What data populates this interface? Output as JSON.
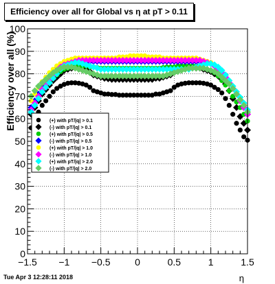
{
  "chart_data": {
    "type": "scatter",
    "title": "Efficiency over all for Global vs   η at pT > 0.11",
    "xlabel": "η",
    "ylabel": "Efficiency over all (%)",
    "xlim": [
      -1.5,
      1.5
    ],
    "ylim": [
      0,
      100
    ],
    "xticks": [
      "−1.5",
      "−1",
      "−0.5",
      "0",
      "0.5",
      "1",
      "1.5"
    ],
    "yticks": [
      "0",
      "10",
      "20",
      "30",
      "40",
      "50",
      "60",
      "70",
      "80",
      "90",
      "100"
    ],
    "grid": true,
    "legend_position": "left",
    "x": [
      -1.45,
      -1.4,
      -1.35,
      -1.3,
      -1.25,
      -1.2,
      -1.15,
      -1.1,
      -1.05,
      -1.0,
      -0.95,
      -0.9,
      -0.85,
      -0.8,
      -0.75,
      -0.7,
      -0.65,
      -0.6,
      -0.55,
      -0.5,
      -0.45,
      -0.4,
      -0.35,
      -0.3,
      -0.25,
      -0.2,
      -0.15,
      -0.1,
      -0.05,
      0.0,
      0.05,
      0.1,
      0.15,
      0.2,
      0.25,
      0.3,
      0.35,
      0.4,
      0.45,
      0.5,
      0.55,
      0.6,
      0.65,
      0.7,
      0.75,
      0.8,
      0.85,
      0.9,
      0.95,
      1.0,
      1.05,
      1.1,
      1.15,
      1.2,
      1.25,
      1.3,
      1.35,
      1.4,
      1.45,
      1.5
    ],
    "series": [
      {
        "name": "(+) with pT/|q| > 0.1",
        "color": "#000000",
        "marker": "circle",
        "values": [
          56,
          60,
          63,
          66,
          68,
          70,
          72,
          73.5,
          74.5,
          75.3,
          75.8,
          76,
          76,
          75.8,
          75.5,
          75,
          74,
          72.5,
          72,
          71.5,
          71,
          71,
          70.8,
          70.8,
          70.5,
          70.5,
          70.5,
          70.5,
          70.5,
          70.5,
          70.5,
          70.5,
          70.5,
          70.5,
          71,
          71,
          71.5,
          72,
          72.5,
          74,
          75,
          75.5,
          75.8,
          76,
          76,
          76,
          76,
          75.8,
          75.5,
          75,
          74,
          73,
          71.5,
          69,
          66,
          62,
          58,
          55,
          52,
          50.5
        ]
      },
      {
        "name": "(-) with pT/|q| > 0.1",
        "color": "#000000",
        "marker": "diamond",
        "values": [
          62,
          65,
          68,
          71,
          73,
          75,
          77,
          78.5,
          80,
          81.5,
          82,
          82.5,
          82.8,
          83,
          82.5,
          82,
          81,
          79.5,
          79,
          78.5,
          78,
          77.8,
          77.5,
          77.5,
          77.5,
          77.5,
          77.5,
          77.5,
          77.5,
          77.5,
          77.5,
          77.5,
          77.5,
          77.5,
          78,
          78,
          78.5,
          79,
          79.5,
          81,
          82,
          82.5,
          83,
          83,
          82.8,
          82.5,
          82.5,
          82,
          81.5,
          81,
          80,
          79,
          77.5,
          75.5,
          72.5,
          69,
          65,
          61,
          58,
          55
        ]
      },
      {
        "name": "(+) with pT/|q| > 0.5",
        "color": "#00cc00",
        "marker": "circle",
        "values": [
          64,
          67,
          70,
          72.5,
          74.5,
          76.5,
          78,
          79.5,
          81,
          82,
          82.5,
          83,
          83.5,
          83.5,
          83.5,
          83.5,
          83,
          83,
          82.8,
          82.5,
          82.5,
          82.5,
          82.5,
          82.5,
          82.5,
          82.5,
          82.5,
          82.5,
          82.5,
          82.5,
          82.5,
          82.5,
          82.5,
          82.5,
          82.5,
          82.5,
          82.8,
          83,
          83,
          83,
          83.5,
          83.5,
          83.5,
          83.5,
          83.5,
          83.5,
          83,
          82.5,
          82,
          81.5,
          80.5,
          79,
          77,
          75,
          72.5,
          70,
          67.5,
          65,
          62,
          59
        ]
      },
      {
        "name": "(-) with pT/|q| > 0.5",
        "color": "#0000ff",
        "marker": "diamond",
        "values": [
          65,
          68,
          71,
          74,
          76.5,
          78.5,
          80.5,
          82.5,
          84,
          85,
          85.5,
          85.5,
          85.5,
          85.5,
          85.5,
          85.5,
          85.5,
          85.5,
          85.5,
          85.5,
          85.5,
          85.5,
          85.5,
          85.5,
          85.5,
          85.5,
          85.5,
          85.5,
          85.5,
          85.5,
          85.5,
          85.5,
          85.5,
          85.5,
          85.5,
          85.5,
          85.5,
          85.5,
          85.5,
          85.5,
          85.5,
          85.5,
          85.5,
          85.5,
          85.5,
          85.5,
          85.5,
          85.5,
          85,
          84.5,
          83.5,
          82,
          80.5,
          78.5,
          76,
          73.5,
          71,
          68,
          65,
          62
        ]
      },
      {
        "name": "(+) with pT/|q| > 1.0",
        "color": "#ffff00",
        "marker": "circle",
        "values": [
          68,
          71,
          74,
          76.5,
          78.5,
          80.5,
          82,
          83.5,
          84.5,
          85.5,
          86,
          86.5,
          87,
          87,
          87,
          87,
          87,
          87,
          87,
          87,
          87,
          87,
          87,
          87,
          87.5,
          87.5,
          87.5,
          88,
          88,
          88,
          88,
          88,
          87.5,
          87.5,
          87.5,
          87.5,
          87,
          87,
          87,
          87,
          87,
          87,
          87,
          87,
          87,
          87,
          86.5,
          86,
          85.5,
          85,
          84,
          82.5,
          81,
          79,
          77,
          74.5,
          72,
          69.5,
          67,
          64
        ]
      },
      {
        "name": "(-) with pT/|q| > 1.0",
        "color": "#ff00ff",
        "marker": "diamond",
        "values": [
          64,
          67,
          70,
          73,
          75.5,
          77.5,
          79.5,
          81.5,
          83,
          84,
          84.5,
          85,
          85.5,
          86,
          86,
          86,
          86,
          86,
          86,
          86,
          86,
          86,
          86,
          86,
          86,
          86,
          86,
          86,
          86,
          86,
          86,
          86,
          86,
          86,
          86,
          86,
          86,
          86,
          86,
          86,
          86,
          86,
          86,
          86,
          86,
          86,
          86,
          85.5,
          85,
          84.5,
          83.5,
          82,
          80.5,
          78.5,
          76,
          73.5,
          71,
          68,
          65,
          62
        ]
      },
      {
        "name": "(+) with pT/|q| > 2.0",
        "color": "#00ffff",
        "marker": "diamond",
        "values": [
          63,
          66,
          69,
          72,
          74,
          76,
          78,
          80,
          82,
          83.5,
          84,
          84.5,
          85,
          85,
          84.5,
          84,
          83.5,
          83,
          82.5,
          82,
          82,
          82,
          82,
          82,
          82,
          82,
          82,
          82,
          82,
          82,
          82,
          82,
          82,
          82,
          82,
          82,
          82,
          82,
          82,
          82,
          82,
          82,
          82,
          82,
          82.5,
          83,
          83.5,
          84,
          84.5,
          84.5,
          84,
          83,
          81.5,
          79.5,
          77,
          74.5,
          72,
          69.5,
          67,
          64
        ]
      },
      {
        "name": "(-) with pT/|q| > 2.0",
        "color": "#66cc66",
        "marker": "diamond",
        "values": [
          70,
          72.5,
          74.5,
          76,
          77.5,
          79,
          80.5,
          81.5,
          82.5,
          83,
          83,
          83,
          82.5,
          82,
          81.5,
          81,
          80.5,
          80,
          79.5,
          79,
          79,
          79,
          79,
          79,
          79,
          79,
          79,
          79,
          79,
          79,
          79,
          79,
          79,
          79,
          79,
          79,
          79,
          79.5,
          80,
          80.5,
          81,
          81.5,
          82,
          82.5,
          82.5,
          82.5,
          82.5,
          82.5,
          82,
          81.5,
          81,
          80,
          78.5,
          77,
          75.5,
          73.5,
          71,
          68.5,
          66,
          63
        ]
      }
    ]
  },
  "footer": {
    "timestamp": "Tue Apr  3 12:28:11 2018"
  }
}
